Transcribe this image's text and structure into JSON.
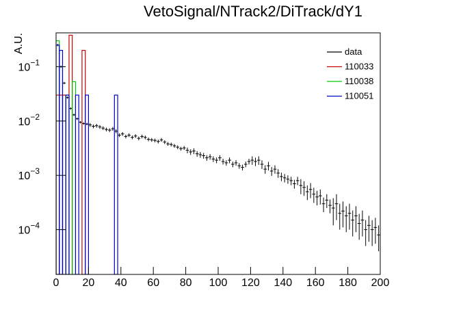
{
  "chart_data": {
    "type": "histogram",
    "title": "VetoSignal/NTrack2/DiTrack/dY1",
    "y_label": "A.U.",
    "log_y": true,
    "xlim": [
      0,
      200
    ],
    "xticks": [
      0,
      20,
      40,
      60,
      80,
      100,
      120,
      140,
      160,
      180,
      200
    ],
    "ylim": [
      1.5e-05,
      0.42
    ],
    "yticks": [
      {
        "value": 0.0001,
        "label": "10^-4"
      },
      {
        "value": 0.001,
        "label": "10^-3"
      },
      {
        "value": 0.01,
        "label": "10^-2"
      },
      {
        "value": 0.1,
        "label": "10^-1"
      }
    ],
    "legend": "top-right",
    "series": [
      {
        "name": "data",
        "color": "#000000",
        "style": "errorbar",
        "x": [
          1,
          3,
          5,
          7,
          9,
          11,
          13,
          15,
          17,
          19,
          21,
          23,
          25,
          27,
          29,
          31,
          33,
          35,
          37,
          39,
          41,
          43,
          45,
          47,
          49,
          51,
          53,
          55,
          57,
          59,
          61,
          63,
          65,
          67,
          69,
          71,
          73,
          75,
          77,
          79,
          81,
          83,
          85,
          87,
          89,
          91,
          93,
          95,
          97,
          99,
          101,
          103,
          105,
          107,
          109,
          111,
          113,
          115,
          117,
          119,
          121,
          123,
          125,
          127,
          129,
          131,
          133,
          135,
          137,
          139,
          141,
          143,
          145,
          147,
          149,
          151,
          153,
          155,
          157,
          159,
          161,
          163,
          165,
          167,
          169,
          171,
          173,
          175,
          177,
          179,
          181,
          183,
          185,
          187,
          189,
          191,
          193,
          195,
          197,
          199
        ],
        "values": [
          0.25,
          0.1,
          0.05,
          0.027,
          0.017,
          0.013,
          0.011,
          0.0095,
          0.009,
          0.0088,
          0.0085,
          0.008,
          0.0082,
          0.0078,
          0.0074,
          0.007,
          0.0068,
          0.0072,
          0.0065,
          0.0055,
          0.0058,
          0.0052,
          0.0055,
          0.005,
          0.0053,
          0.0048,
          0.0052,
          0.005,
          0.0046,
          0.0045,
          0.0044,
          0.0042,
          0.0045,
          0.0041,
          0.0038,
          0.0037,
          0.0035,
          0.0033,
          0.0031,
          0.0032,
          0.0029,
          0.0027,
          0.0028,
          0.0025,
          0.0024,
          0.0023,
          0.0021,
          0.0022,
          0.002,
          0.0019,
          0.0021,
          0.0018,
          0.0017,
          0.0019,
          0.0016,
          0.0017,
          0.0015,
          0.0014,
          0.0016,
          0.0018,
          0.0019,
          0.0018,
          0.0019,
          0.0016,
          0.0013,
          0.0015,
          0.0012,
          0.0013,
          0.0011,
          0.00095,
          0.0009,
          0.00085,
          0.0008,
          0.0007,
          0.0008,
          0.00065,
          0.0006,
          0.0005,
          0.00055,
          0.00045,
          0.0004,
          0.00042,
          0.0003,
          0.00035,
          0.00028,
          0.00025,
          0.0003,
          0.0002,
          0.00022,
          0.00018,
          0.0002,
          0.00015,
          0.00018,
          0.00013,
          0.00015,
          0.0001,
          0.00012,
          0.0001,
          0.00011,
          8e-05
        ],
        "errors": [
          0.0125,
          0.005,
          0.0025,
          0.0014,
          0.00085,
          0.00065,
          0.00055,
          0.00048,
          0.00045,
          0.00044,
          0.00068,
          0.00064,
          0.00066,
          0.00062,
          0.00059,
          0.00056,
          0.00054,
          0.00058,
          0.00052,
          0.00044,
          0.00046,
          0.00042,
          0.00044,
          0.0004,
          0.00042,
          0.00038,
          0.00042,
          0.0004,
          0.00037,
          0.00036,
          0.00035,
          0.00034,
          0.00036,
          0.00033,
          0.0003,
          0.0003,
          0.00028,
          0.00026,
          0.00025,
          0.00026,
          0.00035,
          0.00032,
          0.00034,
          0.0003,
          0.00029,
          0.00028,
          0.00025,
          0.00026,
          0.00024,
          0.00023,
          0.00025,
          0.00022,
          0.0002,
          0.00023,
          0.00019,
          0.0002,
          0.00018,
          0.00017,
          0.00019,
          0.00022,
          0.00034,
          0.00032,
          0.00034,
          0.00029,
          0.00023,
          0.00027,
          0.00022,
          0.00023,
          0.0002,
          0.00017,
          0.00016,
          0.00015,
          0.00014,
          0.00013,
          0.00014,
          0.0002,
          0.00018,
          0.00015,
          0.00017,
          0.00014,
          0.00012,
          0.00013,
          9e-05,
          0.0001,
          8e-05,
          0.00013,
          0.00015,
          0.0001,
          0.00011,
          9e-05,
          0.0001,
          7.5e-05,
          9e-05,
          6.5e-05,
          7.5e-05,
          5e-05,
          6e-05,
          5e-05,
          5.5e-05,
          4e-05
        ]
      },
      {
        "name": "110033",
        "color": "#cc0000",
        "style": "step",
        "x": [
          1,
          3,
          5,
          9,
          17
        ],
        "values": [
          0.03,
          0.03,
          0.03,
          0.38,
          0.2
        ]
      },
      {
        "name": "110038",
        "color": "#00cc00",
        "style": "step",
        "x": [
          1,
          3,
          7,
          11
        ],
        "values": [
          0.3,
          0.1,
          0.03,
          0.053
        ]
      },
      {
        "name": "110051",
        "color": "#0000cc",
        "style": "step",
        "x": [
          1,
          3,
          7,
          13,
          19,
          37
        ],
        "values": [
          0.25,
          0.2,
          0.03,
          0.03,
          0.03,
          0.03
        ]
      }
    ]
  }
}
